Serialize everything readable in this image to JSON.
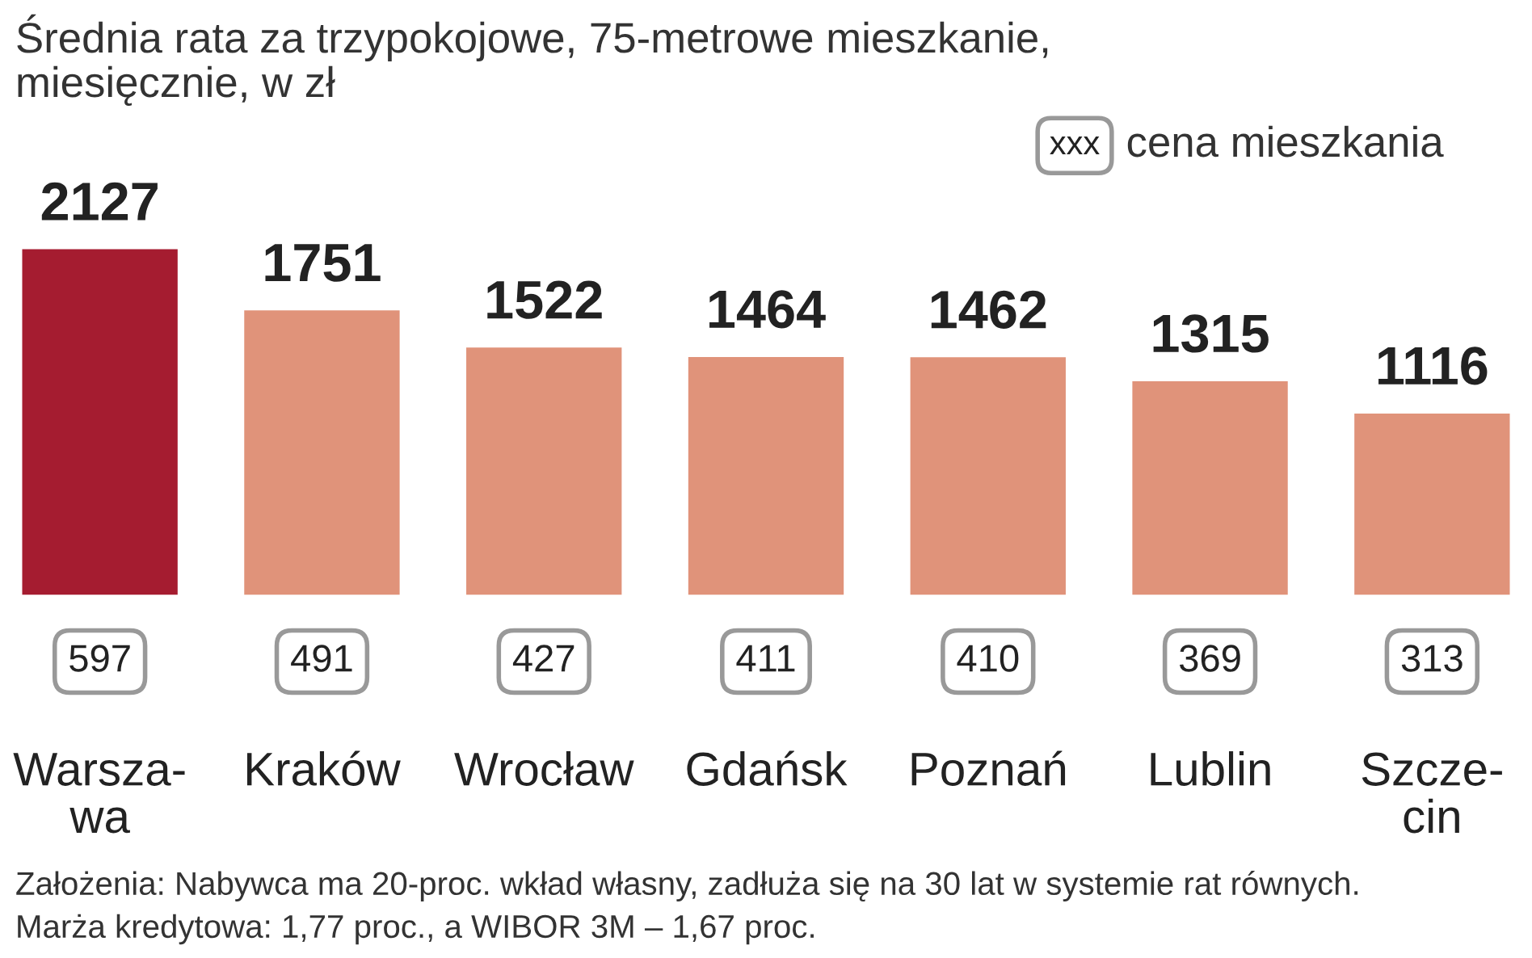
{
  "chart_data": {
    "type": "bar",
    "title": "Średnia rata za trzypokojowe, 75-metrowe mieszkanie,\nmiesięcznie, w zł",
    "categories": [
      "Warsza-\nwa",
      "Kraków",
      "Wrocław",
      "Gdańsk",
      "Poznań",
      "Lublin",
      "Szcze-\ncin"
    ],
    "values": [
      2127,
      1751,
      1522,
      1464,
      1462,
      1315,
      1116
    ],
    "colors": [
      "#a51c30",
      "#e0937a",
      "#e0937a",
      "#e0937a",
      "#e0937a",
      "#e0937a",
      "#e0937a"
    ],
    "data_labels": true,
    "annotations": [
      "597",
      "491",
      "427",
      "411",
      "410",
      "369",
      "313",
      "xxx",
      "cena mieszkania",
      "Założenia: Nabywca ma 20-proc. wkład własny, zadłuża się na 30 lat w systemie rat równych.",
      "Marża kredytowa: 1,77 proc., a WIBOR 3M – 1,67 proc."
    ]
  }
}
